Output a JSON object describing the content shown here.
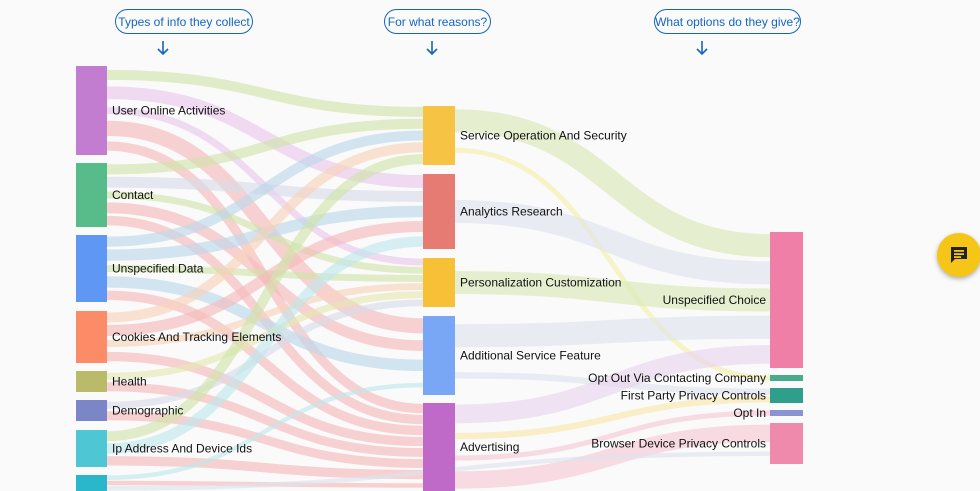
{
  "headers": {
    "types": "Types of info they collect",
    "reasons": "For what reasons?",
    "options": "What options do they give?"
  },
  "nodes": {
    "left": [
      {
        "id": "uoa",
        "label": "User Online Activities",
        "color": "#c27dd0"
      },
      {
        "id": "con",
        "label": "Contact",
        "color": "#57bb8a"
      },
      {
        "id": "usd",
        "label": "Unspecified Data",
        "color": "#5f97f5"
      },
      {
        "id": "cte",
        "label": "Cookies And Tracking Elements",
        "color": "#fb8c67"
      },
      {
        "id": "hea",
        "label": "Health",
        "color": "#b9bb6b"
      },
      {
        "id": "dem",
        "label": "Demographic",
        "color": "#7b86c6"
      },
      {
        "id": "ipa",
        "label": "Ip Address And Device Ids",
        "color": "#4ec6d4"
      },
      {
        "id": "gen",
        "label": "",
        "color": "#2ab7cc"
      }
    ],
    "middle": [
      {
        "id": "sos",
        "label": "Service Operation And Security",
        "color": "#f6c344"
      },
      {
        "id": "anr",
        "label": "Analytics Research",
        "color": "#e57b73"
      },
      {
        "id": "pec",
        "label": "Personalization Customization",
        "color": "#f7c137"
      },
      {
        "id": "asf",
        "label": "Additional Service Feature",
        "color": "#79a7f5"
      },
      {
        "id": "adv",
        "label": "Advertising",
        "color": "#bf6ac9"
      }
    ],
    "right": [
      {
        "id": "unc",
        "label": "Unspecified Choice",
        "color": "#ef7fa6"
      },
      {
        "id": "ovc",
        "label": "Opt Out Via Contacting Company",
        "color": "#4aaa8a"
      },
      {
        "id": "fpp",
        "label": "First Party Privacy Controls",
        "color": "#2f9e8a"
      },
      {
        "id": "opi",
        "label": "Opt In",
        "color": "#8a94d0"
      },
      {
        "id": "bdp",
        "label": "Browser Device Privacy Controls",
        "color": "#f08aad"
      }
    ]
  },
  "links": [
    {
      "s": "uoa",
      "t": "sos",
      "color": "#cfe3a8"
    },
    {
      "s": "uoa",
      "t": "anr",
      "color": "#e8c6ec"
    },
    {
      "s": "uoa",
      "t": "pec",
      "color": "#e8c6ec"
    },
    {
      "s": "uoa",
      "t": "asf",
      "color": "#f6b8b8"
    },
    {
      "s": "uoa",
      "t": "adv",
      "color": "#f6b8b8"
    },
    {
      "s": "con",
      "t": "sos",
      "color": "#cfe3a8"
    },
    {
      "s": "con",
      "t": "anr",
      "color": "#d7dbe8"
    },
    {
      "s": "con",
      "t": "pec",
      "color": "#cfe3a8"
    },
    {
      "s": "con",
      "t": "asf",
      "color": "#f6b8b8"
    },
    {
      "s": "con",
      "t": "adv",
      "color": "#f6b8b8"
    },
    {
      "s": "usd",
      "t": "sos",
      "color": "#bcd7ec"
    },
    {
      "s": "usd",
      "t": "anr",
      "color": "#bcd7ec"
    },
    {
      "s": "usd",
      "t": "pec",
      "color": "#cfe3a8"
    },
    {
      "s": "usd",
      "t": "asf",
      "color": "#bcd7ec"
    },
    {
      "s": "usd",
      "t": "adv",
      "color": "#f6b8b8"
    },
    {
      "s": "cte",
      "t": "sos",
      "color": "#f9d2b8"
    },
    {
      "s": "cte",
      "t": "anr",
      "color": "#f6b8b8"
    },
    {
      "s": "cte",
      "t": "pec",
      "color": "#f9d2b8"
    },
    {
      "s": "cte",
      "t": "adv",
      "color": "#f6b8b8"
    },
    {
      "s": "hea",
      "t": "pec",
      "color": "#e3e6b0"
    },
    {
      "s": "hea",
      "t": "adv",
      "color": "#f6b8b8"
    },
    {
      "s": "dem",
      "t": "pec",
      "color": "#d7dbe8"
    },
    {
      "s": "dem",
      "t": "adv",
      "color": "#f6b8b8"
    },
    {
      "s": "ipa",
      "t": "sos",
      "color": "#cfe3a8"
    },
    {
      "s": "ipa",
      "t": "anr",
      "color": "#bfe6ec"
    },
    {
      "s": "ipa",
      "t": "adv",
      "color": "#f6b8b8"
    },
    {
      "s": "gen",
      "t": "asf",
      "color": "#bfe6ec"
    },
    {
      "s": "gen",
      "t": "adv",
      "color": "#f6b8b8"
    },
    {
      "s": "sos",
      "t": "unc",
      "color": "#d9e9b5"
    },
    {
      "s": "sos",
      "t": "ovc",
      "color": "#f3f0a8"
    },
    {
      "s": "anr",
      "t": "unc",
      "color": "#dfe2ee"
    },
    {
      "s": "pec",
      "t": "unc",
      "color": "#d9e9b5"
    },
    {
      "s": "asf",
      "t": "unc",
      "color": "#dfe2ee"
    },
    {
      "s": "asf",
      "t": "fpp",
      "color": "#dfe2ee"
    },
    {
      "s": "adv",
      "t": "unc",
      "color": "#e9d3ee"
    },
    {
      "s": "adv",
      "t": "fpp",
      "color": "#f9e7a8"
    },
    {
      "s": "adv",
      "t": "opi",
      "color": "#f6c6d4"
    },
    {
      "s": "adv",
      "t": "bdp",
      "color": "#f6c6d4"
    },
    {
      "s": "gen",
      "t": "bdp",
      "color": "#dfe2ee"
    }
  ]
}
